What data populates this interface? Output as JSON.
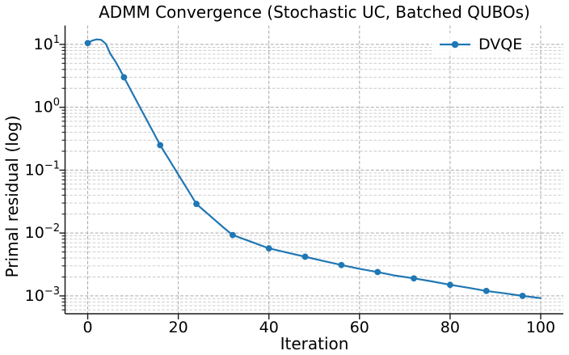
{
  "chart_data": {
    "type": "line",
    "title": "ADMM Convergence (Stochastic UC, Batched QUBOs)",
    "xlabel": "Iteration",
    "ylabel": "Primal residual (log)",
    "xscale": "linear",
    "yscale": "log",
    "xlim": [
      -5,
      105
    ],
    "ylim": [
      0.00052,
      20
    ],
    "xticks": [
      0,
      20,
      40,
      60,
      80,
      100
    ],
    "xtick_labels": [
      "0",
      "20",
      "40",
      "60",
      "80",
      "100"
    ],
    "ytick_values": [
      10,
      1,
      0.1,
      0.01,
      0.001
    ],
    "ytick_base": "10",
    "ytick_exponents": [
      "1",
      "0",
      "−1",
      "−2",
      "−3"
    ],
    "grid": {
      "major": true,
      "minor": true,
      "style": "dashed"
    },
    "legend": {
      "position": "upper right",
      "frame": false,
      "entries": [
        {
          "label": "DVQE",
          "color": "#1f77b4",
          "marker": "circle"
        }
      ]
    },
    "series": [
      {
        "name": "DVQE",
        "color": "#1f77b4",
        "markevery": 8,
        "marker_x": [
          0,
          8,
          16,
          24,
          32,
          40,
          48,
          56,
          64,
          72,
          80,
          88,
          96
        ],
        "marker_y": [
          10.5,
          3.0,
          0.25,
          0.029,
          0.0093,
          0.0057,
          0.0042,
          0.0031,
          0.0024,
          0.0019,
          0.0015,
          0.0012,
          0.001
        ],
        "line_x": [
          0,
          1,
          2,
          3,
          4,
          5,
          6,
          7,
          8,
          10,
          12,
          14,
          16,
          18,
          20,
          22,
          24,
          26,
          28,
          30,
          32,
          36,
          40,
          44,
          48,
          52,
          56,
          60,
          64,
          68,
          72,
          76,
          80,
          84,
          88,
          92,
          96,
          100
        ],
        "line_y": [
          10.5,
          11.5,
          12.0,
          11.8,
          10.2,
          7.1,
          5.5,
          4.1,
          3.0,
          1.61,
          0.865,
          0.465,
          0.25,
          0.146,
          0.085,
          0.05,
          0.029,
          0.0217,
          0.0163,
          0.0122,
          0.0093,
          0.0073,
          0.0057,
          0.0049,
          0.0042,
          0.0036,
          0.0031,
          0.0027,
          0.0024,
          0.0021,
          0.0019,
          0.0017,
          0.0015,
          0.00135,
          0.0012,
          0.0011,
          0.001,
          0.00092
        ]
      }
    ],
    "colors": {
      "line": "#1f77b4",
      "spine": "#1a1a1a",
      "grid_major": "#a9a9a9",
      "grid_minor": "#c6c6c6",
      "text": "#000000",
      "background": "#ffffff"
    }
  }
}
